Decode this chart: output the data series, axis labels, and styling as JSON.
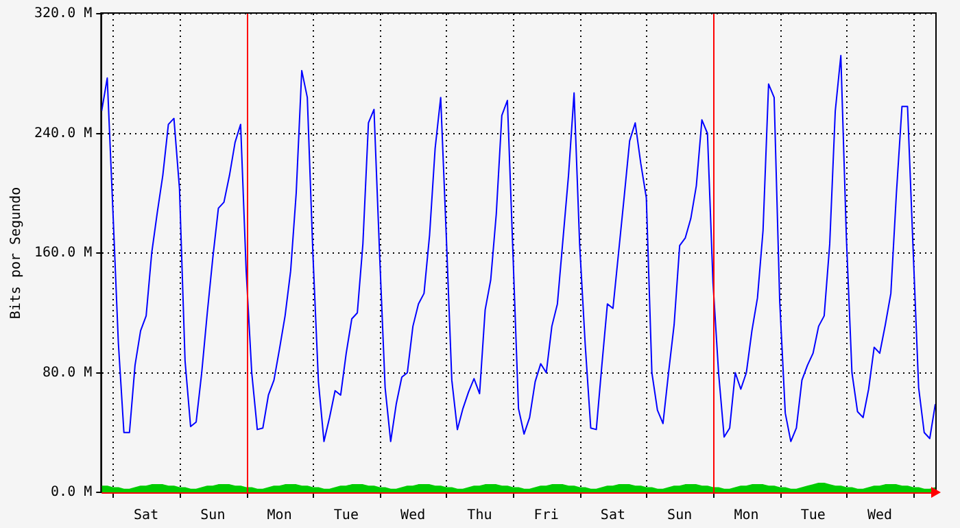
{
  "chart_data": {
    "type": "line",
    "ylabel": "Bits por Segundo",
    "categories": [
      null,
      null,
      null,
      null,
      null,
      null,
      null,
      null,
      "Sat",
      null,
      null,
      null,
      null,
      null,
      null,
      null,
      null,
      null,
      null,
      null,
      "Sun",
      null,
      null,
      null,
      null,
      null,
      null,
      null,
      null,
      null,
      null,
      null,
      "Mon",
      null,
      null,
      null,
      null,
      null,
      null,
      null,
      null,
      null,
      null,
      null,
      "Tue",
      null,
      null,
      null,
      null,
      null,
      null,
      null,
      null,
      null,
      null,
      null,
      "Wed",
      null,
      null,
      null,
      null,
      null,
      null,
      null,
      null,
      null,
      null,
      null,
      "Thu",
      null,
      null,
      null,
      null,
      null,
      null,
      null,
      null,
      null,
      null,
      null,
      "Fri",
      null,
      null,
      null,
      null,
      null,
      null,
      null,
      null,
      null,
      null,
      null,
      "Sat",
      null,
      null,
      null,
      null,
      null,
      null,
      null,
      null,
      null,
      null,
      null,
      "Sun",
      null,
      null,
      null,
      null,
      null,
      null,
      null,
      null,
      null,
      null,
      null,
      "Mon",
      null,
      null,
      null,
      null,
      null,
      null,
      null,
      null,
      null,
      null,
      null,
      "Tue",
      null,
      null,
      null,
      null,
      null,
      null,
      null,
      null,
      null,
      null,
      null,
      "Wed",
      null,
      null,
      null,
      null,
      null,
      null,
      null,
      null,
      null,
      null
    ],
    "ylim": [
      0,
      320
    ],
    "yticks": [
      {
        "value": 0,
        "label": "0.0 M"
      },
      {
        "value": 80,
        "label": "80.0 M"
      },
      {
        "value": 160,
        "label": "160.0 M"
      },
      {
        "value": 240,
        "label": "240.0 M"
      },
      {
        "value": 320,
        "label": "320.0 M"
      }
    ],
    "grid": true,
    "legend": false,
    "marker": "none",
    "line_style": "solid",
    "series": [
      {
        "type": "area",
        "color": "#00cc00",
        "values": [
          4,
          4,
          3,
          3,
          2,
          2,
          3,
          4,
          4,
          5,
          5,
          5,
          4,
          4,
          3,
          3,
          2,
          2,
          3,
          4,
          4,
          5,
          5,
          5,
          4,
          4,
          3,
          3,
          2,
          2,
          3,
          4,
          4,
          5,
          5,
          5,
          4,
          4,
          3,
          3,
          2,
          2,
          3,
          4,
          4,
          5,
          5,
          5,
          4,
          4,
          3,
          3,
          2,
          2,
          3,
          4,
          4,
          5,
          5,
          5,
          4,
          4,
          3,
          3,
          2,
          2,
          3,
          4,
          4,
          5,
          5,
          5,
          4,
          4,
          3,
          3,
          2,
          2,
          3,
          4,
          4,
          5,
          5,
          5,
          4,
          4,
          3,
          3,
          2,
          2,
          3,
          4,
          4,
          5,
          5,
          5,
          4,
          4,
          3,
          3,
          2,
          2,
          3,
          4,
          4,
          5,
          5,
          5,
          4,
          4,
          3,
          3,
          2,
          2,
          3,
          4,
          4,
          5,
          5,
          5,
          4,
          4,
          3,
          3,
          2,
          2,
          3,
          4,
          5,
          6,
          6,
          5,
          4,
          4,
          3,
          3,
          2,
          2,
          3,
          4,
          4,
          5,
          5,
          5,
          4,
          4,
          3,
          3,
          2,
          2,
          3
        ]
      },
      {
        "color": "#0000ff",
        "values": [
          255,
          277,
          190,
          100,
          40,
          40,
          85,
          108,
          118,
          160,
          187,
          212,
          246,
          250,
          203,
          88,
          44,
          47,
          80,
          120,
          157,
          190,
          194,
          212,
          234,
          246,
          148,
          80,
          42,
          43,
          65,
          75,
          96,
          118,
          148,
          200,
          282,
          264,
          160,
          74,
          34,
          50,
          68,
          65,
          93,
          116,
          120,
          166,
          247,
          256,
          160,
          70,
          34,
          59,
          77,
          80,
          111,
          126,
          133,
          172,
          230,
          264,
          172,
          75,
          42,
          56,
          67,
          76,
          66,
          122,
          142,
          186,
          252,
          262,
          160,
          56,
          39,
          50,
          74,
          86,
          80,
          111,
          126,
          169,
          212,
          267,
          166,
          99,
          43,
          42,
          85,
          126,
          123,
          160,
          197,
          235,
          247,
          220,
          197,
          80,
          55,
          46,
          80,
          112,
          165,
          170,
          183,
          205,
          249,
          240,
          140,
          80,
          37,
          43,
          80,
          69,
          80,
          108,
          130,
          175,
          273,
          264,
          128,
          53,
          34,
          43,
          75,
          85,
          93,
          111,
          118,
          166,
          255,
          292,
          170,
          80,
          54,
          50,
          69,
          97,
          93,
          112,
          133,
          200,
          258,
          258,
          163,
          70,
          40,
          36,
          59
        ]
      }
    ]
  }
}
